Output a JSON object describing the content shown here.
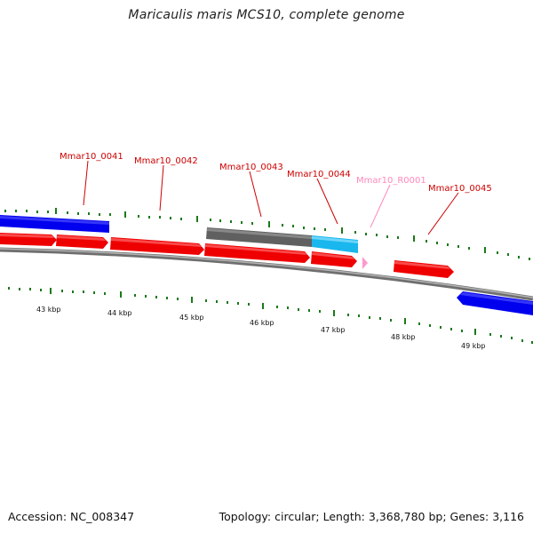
{
  "title": "Maricaulis maris MCS10, complete genome",
  "footer": {
    "accession": "Accession: NC_008347",
    "summary": "Topology: circular; Length: 3,368,780 bp; Genes: 3,116"
  },
  "colors": {
    "gene_red": "#ff0000",
    "gene_blue": "#0000ff",
    "gene_gray": "#666666",
    "gene_cyan": "#19b7ee",
    "rna_pink": "#ff99cc",
    "label_red": "#cc0000",
    "label_pink": "#ff88bb",
    "tick_green": "#1a7a1a",
    "backbone": "#808080"
  },
  "genes": [
    {
      "id": "Mmar10_0041"
    },
    {
      "id": "Mmar10_0042"
    },
    {
      "id": "Mmar10_0043"
    },
    {
      "id": "Mmar10_0044"
    },
    {
      "id": "Mmar10_R0001"
    },
    {
      "id": "Mmar10_0045"
    }
  ],
  "kbp_labels": [
    "43 kbp",
    "44 kbp",
    "45 kbp",
    "46 kbp",
    "47 kbp",
    "48 kbp",
    "49 kbp"
  ]
}
